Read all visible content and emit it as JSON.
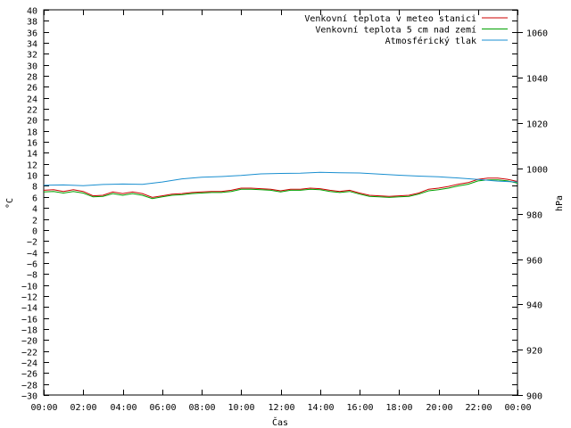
{
  "chart_data": {
    "type": "line",
    "xlabel": "Čas",
    "ylabel_left": "°C",
    "ylabel_right": "hPa",
    "ylim_left": [
      -30,
      40
    ],
    "ylim_right": [
      900,
      1070
    ],
    "y_ticks_left": [
      -30,
      -28,
      -26,
      -24,
      -22,
      -20,
      -18,
      -16,
      -14,
      -12,
      -10,
      -8,
      -6,
      -4,
      -2,
      0,
      2,
      4,
      6,
      8,
      10,
      12,
      14,
      16,
      18,
      20,
      22,
      24,
      26,
      28,
      30,
      32,
      34,
      36,
      38,
      40
    ],
    "y_tick_labels_left": [
      "−30",
      "−28",
      "−26",
      "−24",
      "−22",
      "−20",
      "−18",
      "−16",
      "−14",
      "−12",
      "−10",
      "−8",
      "−6",
      "−4",
      "−2",
      "0",
      "2",
      "4",
      "6",
      "8",
      "10",
      "12",
      "14",
      "16",
      "18",
      "20",
      "22",
      "24",
      "26",
      "28",
      "30",
      "32",
      "34",
      "36",
      "38",
      "40"
    ],
    "y_ticks_right": [
      900,
      920,
      940,
      960,
      980,
      1000,
      1020,
      1040,
      1060
    ],
    "y_tick_labels_right": [
      "900",
      "920",
      "940",
      "960",
      "980",
      "1000",
      "1020",
      "1040",
      "1060"
    ],
    "x_ticks": [
      0,
      2,
      4,
      6,
      8,
      10,
      12,
      14,
      16,
      18,
      20,
      22,
      24
    ],
    "x_tick_labels": [
      "00:00",
      "02:00",
      "04:00",
      "06:00",
      "08:00",
      "10:00",
      "12:00",
      "14:00",
      "16:00",
      "18:00",
      "20:00",
      "22:00",
      "00:00"
    ],
    "xlim": [
      0,
      24
    ],
    "grid": false,
    "legend_position": "top-right",
    "series": [
      {
        "name": "Venkovní teplota v meteo stanici",
        "color": "#cc0000",
        "axis": "left",
        "x": [
          0,
          0.5,
          1,
          1.5,
          2,
          2.5,
          3,
          3.5,
          4,
          4.5,
          5,
          5.5,
          6,
          6.5,
          7,
          7.5,
          8,
          8.5,
          9,
          9.5,
          10,
          10.5,
          11,
          11.5,
          12,
          12.5,
          13,
          13.5,
          14,
          14.5,
          15,
          15.5,
          16,
          16.5,
          17,
          17.5,
          18,
          18.5,
          19,
          19.5,
          20,
          20.5,
          21,
          21.5,
          22,
          22.5,
          23,
          23.5,
          24
        ],
        "values": [
          7.2,
          7.3,
          7.0,
          7.3,
          7.0,
          6.2,
          6.3,
          6.9,
          6.6,
          6.9,
          6.6,
          5.9,
          6.2,
          6.5,
          6.6,
          6.8,
          6.9,
          7.0,
          7.0,
          7.2,
          7.6,
          7.6,
          7.5,
          7.4,
          7.1,
          7.4,
          7.4,
          7.6,
          7.5,
          7.2,
          7.0,
          7.2,
          6.7,
          6.3,
          6.2,
          6.1,
          6.2,
          6.3,
          6.7,
          7.4,
          7.6,
          7.9,
          8.3,
          8.6,
          9.2,
          9.4,
          9.4,
          9.2,
          8.8
        ]
      },
      {
        "name": "Venkovní teplota 5 cm nad zemí",
        "color": "#00a000",
        "axis": "left",
        "x": [
          0,
          0.5,
          1,
          1.5,
          2,
          2.5,
          3,
          3.5,
          4,
          4.5,
          5,
          5.5,
          6,
          6.5,
          7,
          7.5,
          8,
          8.5,
          9,
          9.5,
          10,
          10.5,
          11,
          11.5,
          12,
          12.5,
          13,
          13.5,
          14,
          14.5,
          15,
          15.5,
          16,
          16.5,
          17,
          17.5,
          18,
          18.5,
          19,
          19.5,
          20,
          20.5,
          21,
          21.5,
          22,
          22.5,
          23,
          23.5,
          24
        ],
        "values": [
          6.9,
          7.0,
          6.7,
          7.0,
          6.7,
          6.0,
          6.1,
          6.6,
          6.3,
          6.6,
          6.3,
          5.7,
          6.0,
          6.3,
          6.4,
          6.6,
          6.7,
          6.8,
          6.8,
          7.0,
          7.4,
          7.4,
          7.3,
          7.2,
          6.9,
          7.2,
          7.2,
          7.4,
          7.3,
          7.0,
          6.8,
          7.0,
          6.5,
          6.1,
          6.0,
          5.9,
          6.0,
          6.1,
          6.5,
          7.1,
          7.3,
          7.6,
          8.0,
          8.3,
          8.9,
          9.1,
          9.1,
          8.9,
          8.5
        ]
      },
      {
        "name": "Atmosférický tlak",
        "color": "#1a8fd0",
        "axis": "right",
        "x": [
          0,
          1,
          2,
          3,
          4,
          5,
          6,
          7,
          8,
          9,
          10,
          11,
          12,
          13,
          14,
          15,
          16,
          17,
          18,
          19,
          20,
          21,
          22,
          23,
          24
        ],
        "values": [
          992.6,
          992.7,
          992.4,
          992.9,
          993.1,
          993.0,
          994.0,
          995.4,
          996.1,
          996.4,
          996.9,
          997.6,
          997.8,
          997.9,
          998.3,
          998.1,
          998.0,
          997.5,
          997.0,
          996.6,
          996.3,
          995.8,
          995.1,
          994.4,
          994.0
        ]
      }
    ]
  }
}
